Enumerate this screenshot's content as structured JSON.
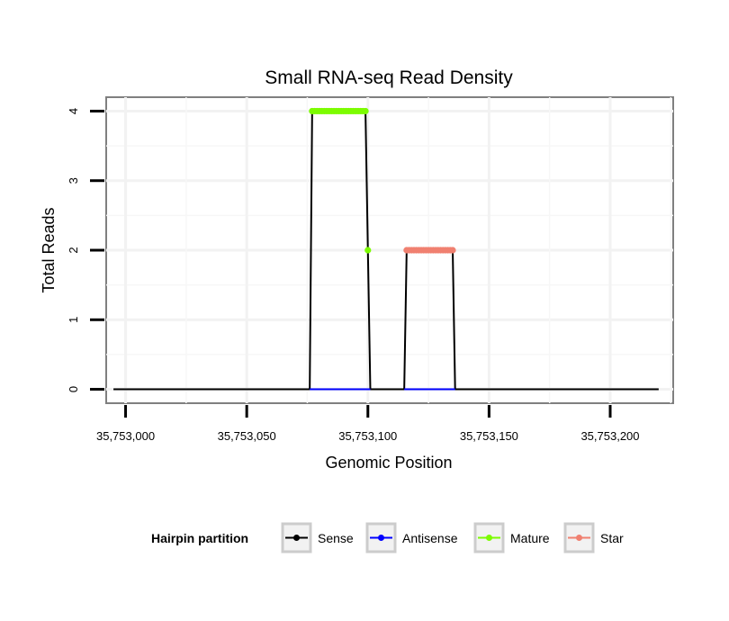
{
  "chart_data": {
    "type": "line",
    "title": "Small RNA-seq Read Density",
    "xlabel": "Genomic Position",
    "ylabel": "Total Reads",
    "xlim": [
      35752992,
      35753226
    ],
    "ylim": [
      -0.2,
      4.2
    ],
    "x_ticks": [
      35753000,
      35753050,
      35753100,
      35753150,
      35753200
    ],
    "x_tick_labels": [
      "35,753,000",
      "35,753,050",
      "35,753,100",
      "35,753,150",
      "35,753,200"
    ],
    "y_ticks": [
      0,
      1,
      2,
      3,
      4
    ],
    "y_tick_labels": [
      "0",
      "1",
      "2",
      "3",
      "4"
    ],
    "grid": true,
    "legend_position": "bottom",
    "legend_title": "Hairpin partition",
    "series": [
      {
        "name": "Sense",
        "color": "#000000",
        "points": [
          [
            35752995,
            0
          ],
          [
            35753076,
            0
          ],
          [
            35753077,
            4
          ],
          [
            35753099,
            4
          ],
          [
            35753100,
            2
          ],
          [
            35753101,
            0
          ],
          [
            35753115,
            0
          ],
          [
            35753116,
            2
          ],
          [
            35753135,
            2
          ],
          [
            35753136,
            0
          ],
          [
            35753220,
            0
          ]
        ]
      },
      {
        "name": "Antisense",
        "color": "#0000ff",
        "points": [
          [
            35753076,
            0
          ],
          [
            35753101,
            0
          ],
          [
            35753115,
            0
          ],
          [
            35753136,
            0
          ]
        ]
      },
      {
        "name": "Mature",
        "color": "#7cfc00",
        "points": [
          [
            35753077,
            4
          ],
          [
            35753078,
            4
          ],
          [
            35753079,
            4
          ],
          [
            35753080,
            4
          ],
          [
            35753081,
            4
          ],
          [
            35753082,
            4
          ],
          [
            35753083,
            4
          ],
          [
            35753084,
            4
          ],
          [
            35753085,
            4
          ],
          [
            35753086,
            4
          ],
          [
            35753087,
            4
          ],
          [
            35753088,
            4
          ],
          [
            35753089,
            4
          ],
          [
            35753090,
            4
          ],
          [
            35753091,
            4
          ],
          [
            35753092,
            4
          ],
          [
            35753093,
            4
          ],
          [
            35753094,
            4
          ],
          [
            35753095,
            4
          ],
          [
            35753096,
            4
          ],
          [
            35753097,
            4
          ],
          [
            35753098,
            4
          ],
          [
            35753099,
            4
          ],
          [
            35753100,
            2
          ]
        ]
      },
      {
        "name": "Star",
        "color": "#f08070",
        "points": [
          [
            35753116,
            2
          ],
          [
            35753117,
            2
          ],
          [
            35753118,
            2
          ],
          [
            35753119,
            2
          ],
          [
            35753120,
            2
          ],
          [
            35753121,
            2
          ],
          [
            35753122,
            2
          ],
          [
            35753123,
            2
          ],
          [
            35753124,
            2
          ],
          [
            35753125,
            2
          ],
          [
            35753126,
            2
          ],
          [
            35753127,
            2
          ],
          [
            35753128,
            2
          ],
          [
            35753129,
            2
          ],
          [
            35753130,
            2
          ],
          [
            35753131,
            2
          ],
          [
            35753132,
            2
          ],
          [
            35753133,
            2
          ],
          [
            35753134,
            2
          ],
          [
            35753135,
            2
          ]
        ]
      }
    ]
  }
}
